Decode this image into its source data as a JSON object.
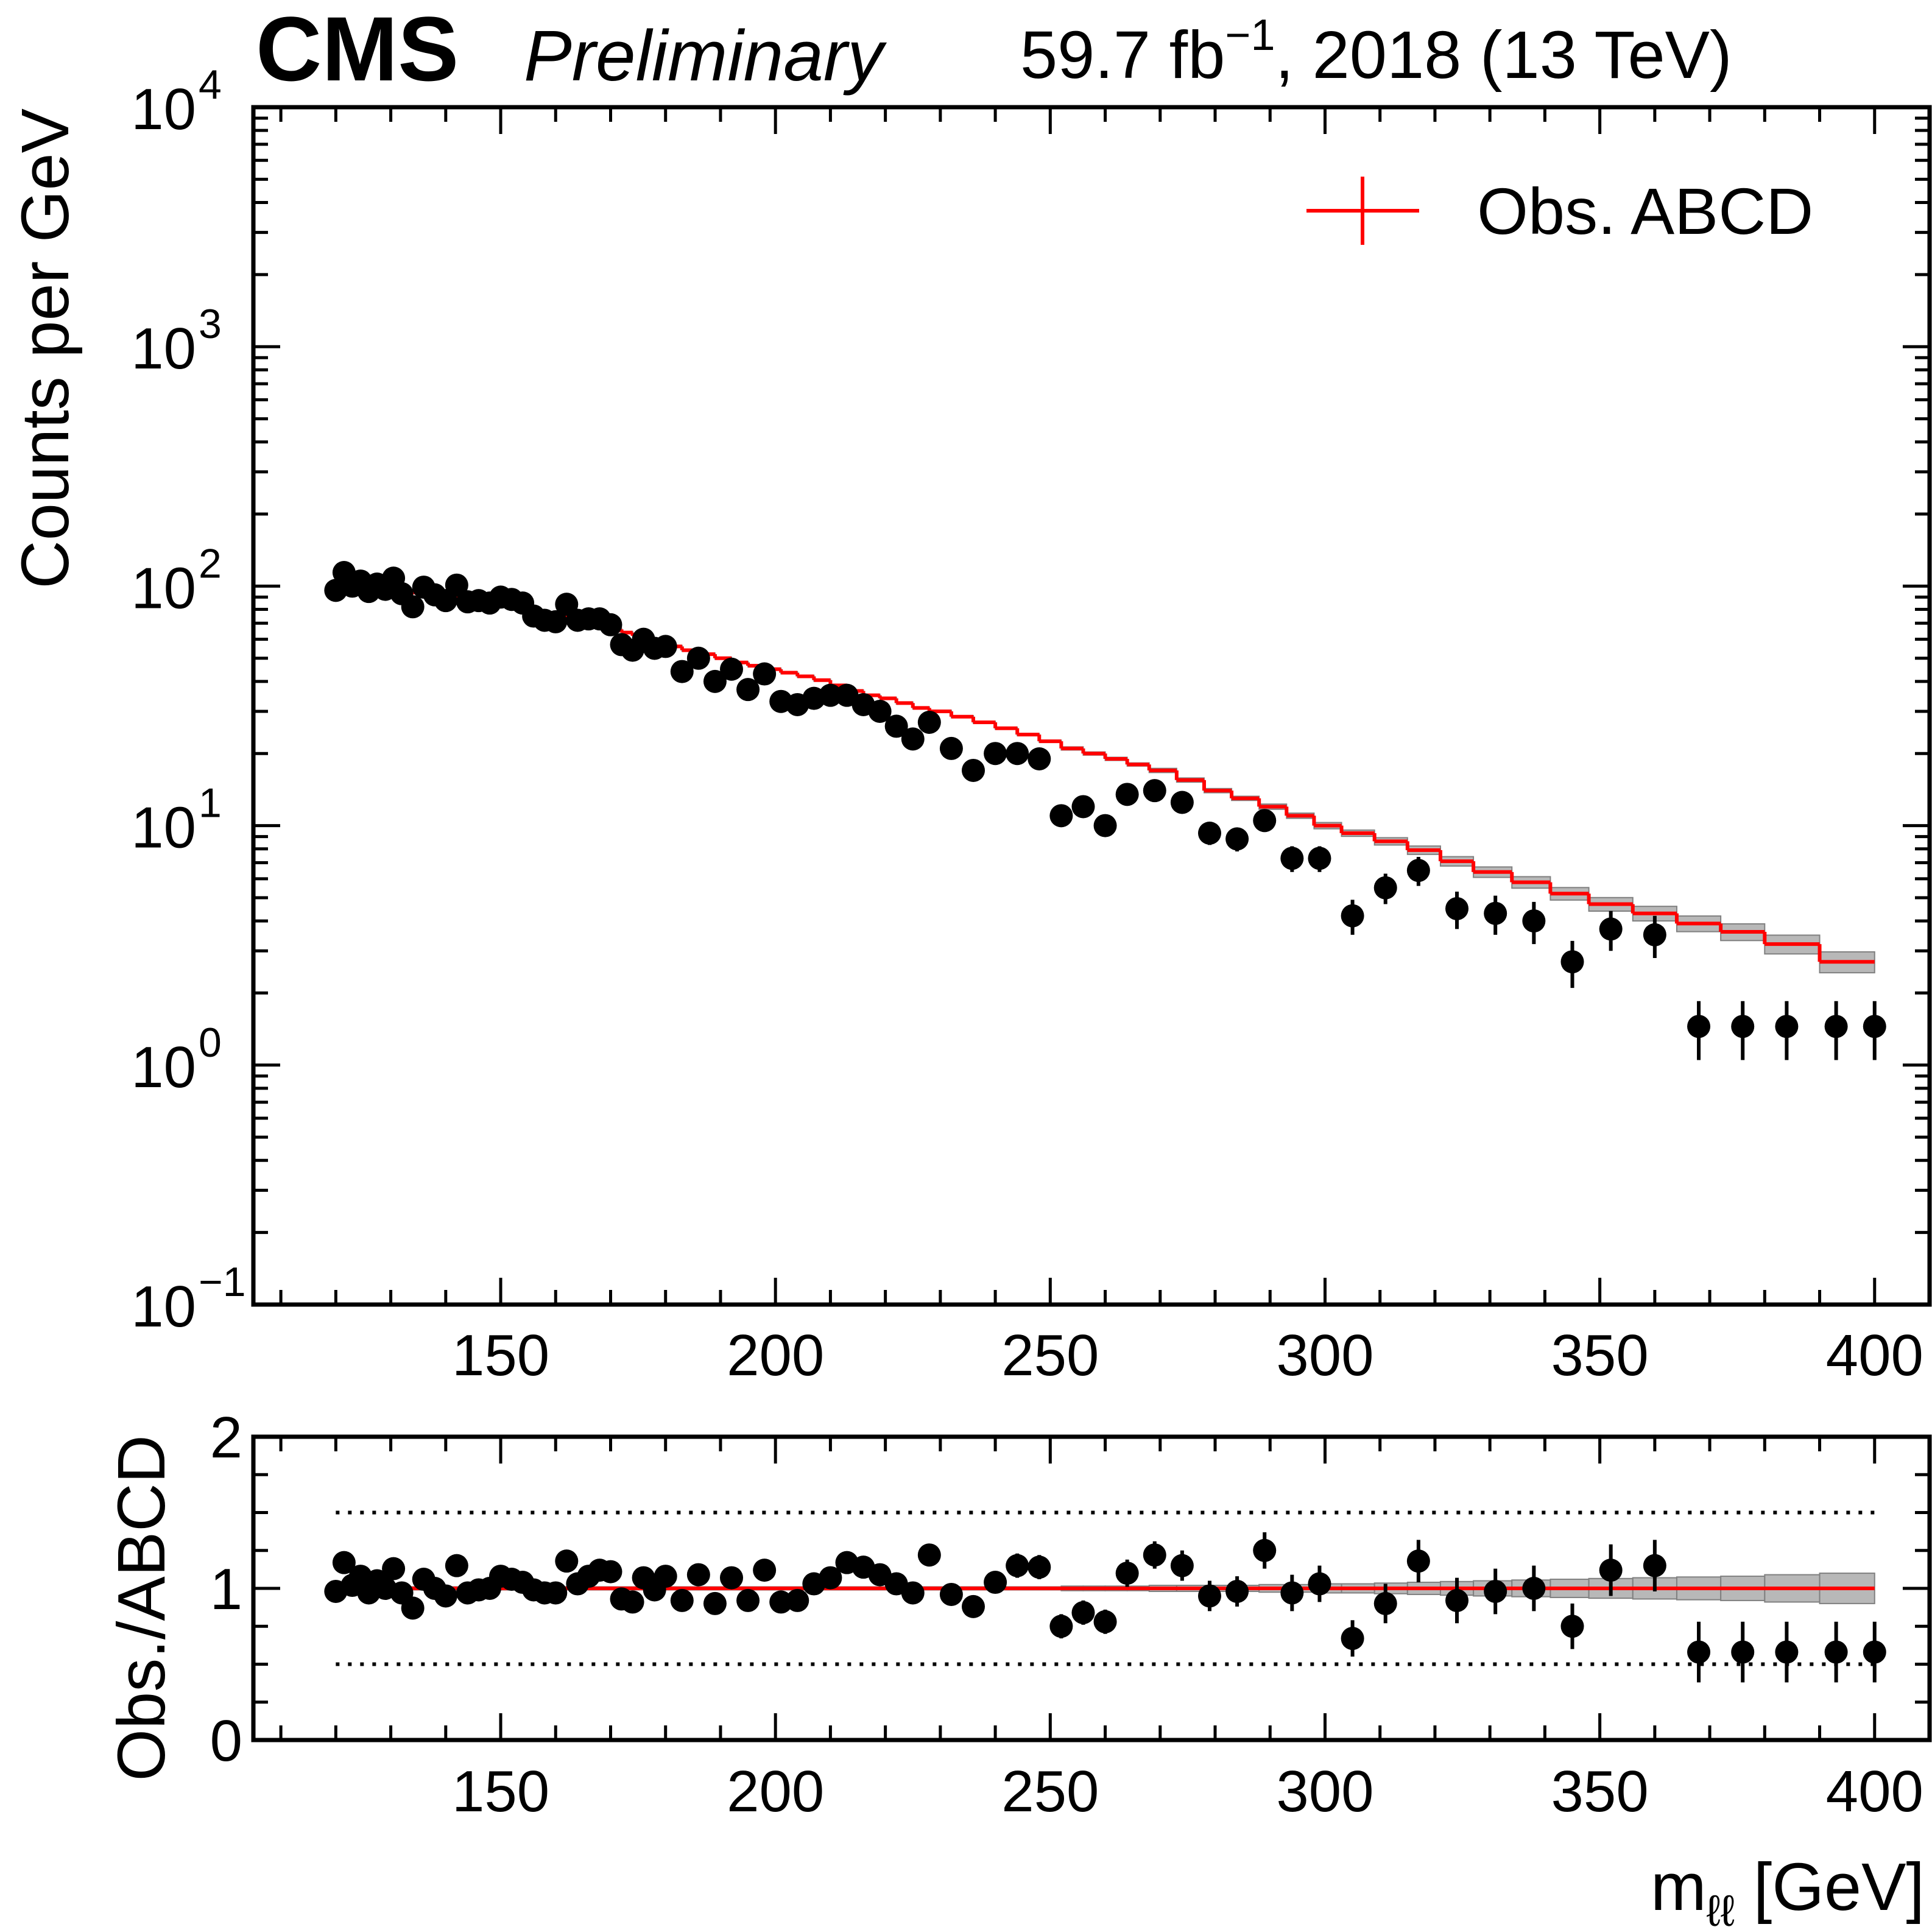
{
  "header": {
    "experiment": "CMS",
    "status": "Preliminary",
    "lumi_text": "59.7 fb",
    "lumi_exponent": "−1",
    "run_text": ", 2018 (13 TeV)"
  },
  "colors": {
    "prediction": "#ff0000",
    "data": "#000000",
    "uncertainty_band": "#a0a0a0"
  },
  "chart_data": [
    {
      "panel": "main",
      "type": "scatter",
      "ylabel": "Counts per GeV",
      "xlabel": "",
      "yscale": "log",
      "xlim": [
        105,
        410
      ],
      "ylim": [
        0.1,
        10000
      ],
      "grid": false,
      "legend_position": "top-right",
      "legend": [
        {
          "label": "Obs. ABCD",
          "style": "red line with error cross"
        }
      ],
      "x_ticks": [
        "150",
        "200",
        "250",
        "300",
        "350",
        "400"
      ],
      "y_ticks": [
        {
          "base": "10",
          "exp": "4"
        },
        {
          "base": "10",
          "exp": "3"
        },
        {
          "base": "10",
          "exp": "2"
        },
        {
          "base": "10",
          "exp": "1"
        },
        {
          "base": "10",
          "exp": "0"
        },
        {
          "base": "10",
          "exp": "−1"
        }
      ],
      "series": [
        {
          "name": "Obs. ABCD",
          "kind": "step prediction with uncertainty band",
          "bin_edges": [
            120,
            122,
            124,
            126,
            128,
            130,
            132,
            134,
            136,
            138,
            140,
            142,
            144,
            146,
            148,
            150,
            152,
            154,
            156,
            158,
            160,
            162,
            164,
            166,
            168,
            170,
            172,
            174,
            176,
            178,
            180,
            183,
            186,
            189,
            192,
            195,
            198,
            201,
            204,
            207,
            210,
            213,
            216,
            219,
            222,
            225,
            228,
            232,
            236,
            240,
            244,
            248,
            252,
            256,
            260,
            264,
            268,
            273,
            278,
            283,
            288,
            293,
            298,
            303,
            309,
            315,
            321,
            327,
            334,
            341,
            348,
            356,
            364,
            372,
            380,
            390,
            400
          ],
          "values": [
            98,
            98,
            98,
            97.5,
            97,
            96,
            95,
            94,
            93,
            92,
            91,
            90,
            89,
            87.5,
            86,
            84,
            82,
            80,
            78.5,
            77,
            75,
            73,
            71,
            69.5,
            68,
            66,
            64,
            62,
            60,
            58.5,
            56,
            54,
            52,
            50,
            48,
            46.5,
            45,
            43.5,
            42,
            40.5,
            38.5,
            36.5,
            35,
            34,
            32.5,
            31,
            30,
            28.5,
            27,
            25.5,
            24,
            22.5,
            21,
            20,
            19,
            18,
            17,
            15.5,
            14,
            13,
            12,
            11,
            10,
            9.3,
            8.6,
            7.9,
            7.1,
            6.4,
            5.8,
            5.2,
            4.7,
            4.3,
            3.9,
            3.6,
            3.2,
            2.7
          ],
          "band_rel_uncertainty": [
            0.01,
            0.01,
            0.01,
            0.01,
            0.01,
            0.01,
            0.01,
            0.01,
            0.01,
            0.01,
            0.01,
            0.01,
            0.01,
            0.01,
            0.01,
            0.01,
            0.01,
            0.01,
            0.01,
            0.01,
            0.01,
            0.01,
            0.01,
            0.01,
            0.01,
            0.01,
            0.01,
            0.01,
            0.01,
            0.01,
            0.01,
            0.01,
            0.01,
            0.01,
            0.01,
            0.01,
            0.01,
            0.01,
            0.01,
            0.01,
            0.01,
            0.01,
            0.01,
            0.01,
            0.01,
            0.01,
            0.01,
            0.01,
            0.01,
            0.01,
            0.01,
            0.01,
            0.015,
            0.015,
            0.015,
            0.015,
            0.02,
            0.02,
            0.02,
            0.02,
            0.025,
            0.025,
            0.03,
            0.03,
            0.035,
            0.04,
            0.045,
            0.05,
            0.055,
            0.06,
            0.065,
            0.07,
            0.075,
            0.08,
            0.09,
            0.1
          ]
        },
        {
          "name": "Data",
          "kind": "points with error bars",
          "x": [
            120,
            121.5,
            123,
            124.5,
            126,
            127.5,
            129,
            130.5,
            132,
            134,
            136,
            138,
            140,
            142,
            144,
            146,
            148,
            150,
            152,
            154,
            156,
            158,
            160,
            162,
            164,
            166,
            168,
            170,
            172,
            174,
            176,
            178,
            180,
            183,
            186,
            189,
            192,
            195,
            198,
            201,
            204,
            207,
            210,
            213,
            216,
            219,
            222,
            225,
            228,
            232,
            236,
            240,
            244,
            248,
            252,
            256,
            260,
            264,
            269,
            274,
            279,
            284,
            289,
            294,
            299,
            305,
            311,
            317,
            324,
            331,
            338,
            345,
            352,
            360,
            368,
            376,
            384,
            393,
            400
          ],
          "y": [
            96,
            114,
            100,
            105,
            95,
            102,
            97,
            108,
            93,
            82,
            99,
            92,
            87,
            101,
            86,
            87,
            85,
            90,
            88,
            85,
            75,
            72,
            71,
            84,
            72,
            73,
            73,
            69,
            57,
            54,
            60,
            55,
            56,
            44,
            50,
            40,
            45,
            37,
            43,
            33,
            32,
            34,
            35,
            35,
            32,
            30,
            26,
            23,
            27,
            21,
            17,
            20,
            20,
            19,
            11,
            12,
            10,
            13.5,
            14,
            12.5,
            9.3,
            8.8,
            10.5,
            7.3,
            7.3,
            4.2,
            5.5,
            6.5,
            4.5,
            4.3,
            4.0,
            2.7,
            3.7,
            3.5,
            1.45,
            1.45,
            1.45,
            1.45,
            1.45
          ],
          "y_err": [
            3,
            3,
            3,
            3,
            3,
            3,
            3,
            3,
            3,
            3,
            3,
            3,
            3,
            3,
            3,
            3,
            3,
            3,
            3,
            3,
            3,
            3,
            3,
            3,
            3,
            3,
            3,
            3,
            2,
            2,
            2,
            2,
            2,
            2,
            2,
            2,
            2,
            2,
            2,
            2,
            2,
            2,
            2,
            2,
            2,
            2,
            2,
            2,
            2,
            1.5,
            1.3,
            1.5,
            1.5,
            1.5,
            1,
            1,
            1,
            1.2,
            1.2,
            1.2,
            1,
            1,
            1.1,
            0.9,
            0.9,
            0.7,
            0.8,
            0.9,
            0.8,
            0.8,
            0.8,
            0.6,
            0.7,
            0.7,
            0.4,
            0.4,
            0.4,
            0.4,
            0.4
          ]
        }
      ]
    },
    {
      "panel": "ratio",
      "type": "scatter",
      "ylabel": "Obs./ABCD",
      "xlabel": "m_ℓℓ [GeV]",
      "xlim": [
        105,
        410
      ],
      "ylim": [
        0,
        2
      ],
      "grid": false,
      "reference_lines": [
        0.5,
        1.5
      ],
      "x_ticks": [
        "150",
        "200",
        "250",
        "300",
        "350",
        "400"
      ],
      "y_ticks": [
        "2",
        "1",
        "0"
      ],
      "series": [
        {
          "name": "Ratio",
          "x": [
            120,
            121.5,
            123,
            124.5,
            126,
            127.5,
            129,
            130.5,
            132,
            134,
            136,
            138,
            140,
            142,
            144,
            146,
            148,
            150,
            152,
            154,
            156,
            158,
            160,
            162,
            164,
            166,
            168,
            170,
            172,
            174,
            176,
            178,
            180,
            183,
            186,
            189,
            192,
            195,
            198,
            201,
            204,
            207,
            210,
            213,
            216,
            219,
            222,
            225,
            228,
            232,
            236,
            240,
            244,
            248,
            252,
            256,
            260,
            264,
            269,
            274,
            279,
            284,
            289,
            294,
            299,
            305,
            311,
            317,
            324,
            331,
            338,
            345,
            352,
            360,
            368,
            376,
            384,
            393,
            400
          ],
          "y": [
            0.98,
            1.17,
            1.02,
            1.08,
            0.97,
            1.05,
            1.0,
            1.13,
            0.97,
            0.87,
            1.06,
            1.0,
            0.95,
            1.15,
            0.97,
            0.99,
            1.0,
            1.08,
            1.06,
            1.04,
            0.99,
            0.97,
            0.97,
            1.18,
            1.03,
            1.08,
            1.12,
            1.11,
            0.93,
            0.91,
            1.07,
            0.99,
            1.08,
            0.92,
            1.09,
            0.9,
            1.07,
            0.92,
            1.12,
            0.91,
            0.92,
            1.03,
            1.07,
            1.17,
            1.14,
            1.09,
            1.03,
            0.97,
            1.22,
            0.96,
            0.88,
            1.04,
            1.15,
            1.14,
            0.75,
            0.84,
            0.78,
            1.1,
            1.22,
            1.15,
            0.95,
            0.98,
            1.25,
            0.97,
            1.03,
            0.67,
            0.9,
            1.18,
            0.92,
            0.98,
            1.0,
            0.75,
            1.12,
            1.15,
            0.58,
            0.58,
            0.58,
            0.58,
            0.58
          ],
          "y_err": [
            0.04,
            0.04,
            0.04,
            0.04,
            0.04,
            0.04,
            0.04,
            0.04,
            0.04,
            0.04,
            0.04,
            0.04,
            0.04,
            0.04,
            0.04,
            0.04,
            0.04,
            0.04,
            0.04,
            0.04,
            0.04,
            0.04,
            0.04,
            0.04,
            0.04,
            0.04,
            0.04,
            0.04,
            0.04,
            0.04,
            0.04,
            0.04,
            0.04,
            0.05,
            0.05,
            0.05,
            0.05,
            0.05,
            0.05,
            0.05,
            0.05,
            0.05,
            0.05,
            0.06,
            0.06,
            0.06,
            0.06,
            0.06,
            0.07,
            0.07,
            0.07,
            0.07,
            0.08,
            0.08,
            0.08,
            0.08,
            0.08,
            0.09,
            0.09,
            0.1,
            0.1,
            0.1,
            0.12,
            0.12,
            0.12,
            0.12,
            0.13,
            0.14,
            0.15,
            0.15,
            0.15,
            0.15,
            0.17,
            0.17,
            0.2,
            0.2,
            0.2,
            0.2,
            0.2
          ]
        }
      ]
    }
  ]
}
